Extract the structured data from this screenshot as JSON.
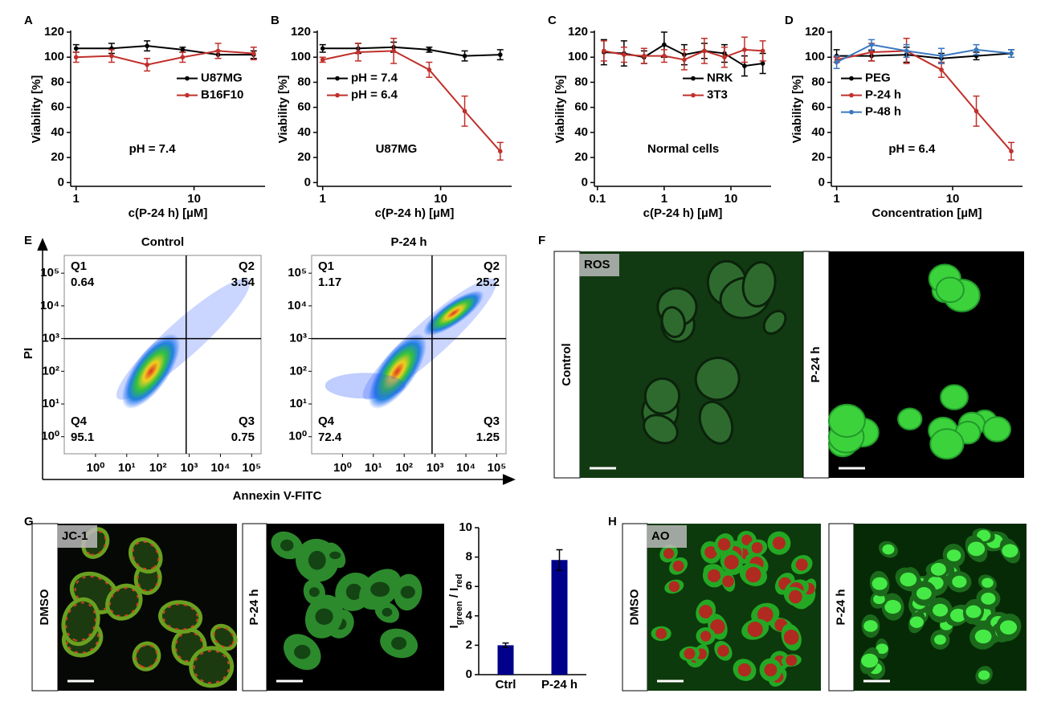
{
  "chart_data": [
    {
      "type": "line",
      "panel_label": "A",
      "xlabel": "c(P-24 h) [µM]",
      "ylabel": "Viability [%]",
      "annotation": "pH = 7.4",
      "xscale": "log",
      "xlim": [
        0.9,
        40
      ],
      "xticks": [
        1,
        10
      ],
      "ylim": [
        -3,
        120
      ],
      "yticks": [
        0,
        20,
        40,
        60,
        80,
        100,
        120
      ],
      "legend": "center right",
      "x": [
        1,
        2,
        4,
        8,
        16,
        32
      ],
      "series": [
        {
          "name": "U87MG",
          "color": "#000000",
          "values": [
            107,
            107,
            109,
            106,
            102,
            102
          ],
          "errors": [
            3,
            4,
            4,
            2,
            3,
            3
          ]
        },
        {
          "name": "B16F10",
          "color": "#c0302b",
          "values": [
            100,
            101,
            94,
            100,
            105,
            103
          ],
          "errors": [
            4,
            5,
            5,
            4,
            6,
            5
          ]
        }
      ]
    },
    {
      "type": "line",
      "panel_label": "B",
      "xlabel": "c(P-24 h) [µM]",
      "ylabel": "Viability [%]",
      "annotation": "U87MG",
      "xscale": "log",
      "xlim": [
        0.9,
        40
      ],
      "xticks": [
        1,
        10
      ],
      "ylim": [
        -3,
        120
      ],
      "yticks": [
        0,
        20,
        40,
        60,
        80,
        100,
        120
      ],
      "legend": "center left",
      "x": [
        1,
        2,
        4,
        8,
        16,
        32
      ],
      "series": [
        {
          "name": "pH = 7.4",
          "color": "#000000",
          "values": [
            107,
            107,
            108,
            106,
            101,
            102
          ],
          "errors": [
            3,
            4,
            4,
            2,
            4,
            4
          ]
        },
        {
          "name": "pH = 6.4",
          "color": "#c0302b",
          "values": [
            98,
            104,
            105,
            90,
            57,
            25
          ],
          "errors": [
            2,
            7,
            10,
            6,
            12,
            7
          ]
        }
      ]
    },
    {
      "type": "line",
      "panel_label": "C",
      "xlabel": "c(P-24 h) [µM]",
      "ylabel": "Viability [%]",
      "annotation": "Normal cells",
      "xscale": "log",
      "xlim": [
        0.09,
        40
      ],
      "xticks": [
        0.1,
        1,
        10
      ],
      "ylim": [
        -3,
        120
      ],
      "yticks": [
        0,
        20,
        40,
        60,
        80,
        100,
        120
      ],
      "legend": "center right",
      "x": [
        0.125,
        0.25,
        0.5,
        1,
        2,
        4,
        8,
        16,
        30
      ],
      "series": [
        {
          "name": "NRK",
          "color": "#000000",
          "values": [
            104,
            103,
            100,
            110,
            102,
            105,
            103,
            93,
            95
          ],
          "errors": [
            10,
            10,
            5,
            10,
            8,
            6,
            7,
            8,
            8
          ]
        },
        {
          "name": "3T3",
          "color": "#c0302b",
          "values": [
            105,
            102,
            101,
            101,
            98,
            105,
            100,
            106,
            105
          ],
          "errors": [
            8,
            6,
            6,
            5,
            8,
            10,
            8,
            10,
            8
          ]
        }
      ]
    },
    {
      "type": "line",
      "panel_label": "D",
      "xlabel": "Concentration [µM]",
      "ylabel": "Viability [%]",
      "annotation": "pH = 6.4",
      "xscale": "log",
      "xlim": [
        0.9,
        40
      ],
      "xticks": [
        1,
        10
      ],
      "ylim": [
        -3,
        120
      ],
      "yticks": [
        0,
        20,
        40,
        60,
        80,
        100,
        120
      ],
      "legend": "center left",
      "x": [
        1,
        2,
        4,
        8,
        16,
        32
      ],
      "series": [
        {
          "name": "PEG",
          "color": "#000000",
          "values": [
            101,
            101,
            102,
            99,
            101,
            103
          ],
          "errors": [
            5,
            4,
            6,
            4,
            3,
            3
          ]
        },
        {
          "name": "P-24 h",
          "color": "#c0302b",
          "values": [
            98,
            104,
            105,
            90,
            57,
            25
          ],
          "errors": [
            2,
            7,
            10,
            6,
            12,
            7
          ]
        },
        {
          "name": "P-48 h",
          "color": "#3a78c0",
          "values": [
            96,
            110,
            105,
            101,
            106,
            103
          ],
          "errors": [
            5,
            4,
            5,
            6,
            4,
            3
          ]
        }
      ]
    },
    {
      "type": "bar",
      "categories": [
        "Ctrl",
        "P-24 h"
      ],
      "values": [
        2.0,
        7.8
      ],
      "errors": [
        0.15,
        0.7
      ],
      "color": "#00008b",
      "ylabel": [
        "I",
        "green",
        " / I",
        "red"
      ],
      "ylim": [
        0,
        10
      ],
      "yticks": [
        0,
        2,
        4,
        6,
        8,
        10
      ]
    }
  ],
  "flow_cytometry": {
    "panel_label": "E",
    "xlabel": "Annexin V-FITC",
    "ylabel": "PI",
    "xscale": "log",
    "xlim": [
      0.1,
      200000
    ],
    "ylim": [
      0.3,
      350000
    ],
    "ticks": [
      {
        "value": 1,
        "label": "10⁰"
      },
      {
        "value": 10,
        "label": "10¹"
      },
      {
        "value": 100,
        "label": "10²"
      },
      {
        "value": 1000,
        "label": "10³"
      },
      {
        "value": 10000,
        "label": "10⁴"
      },
      {
        "value": 100000,
        "label": "10⁵"
      }
    ],
    "gate": {
      "x": 800,
      "y": 1000
    },
    "plots": [
      {
        "title": "Control",
        "quadrants": [
          {
            "name": "Q1",
            "value": 0.64
          },
          {
            "name": "Q2",
            "value": 3.54
          },
          {
            "name": "Q3",
            "value": 0.75
          },
          {
            "name": "Q4",
            "value": 95.1
          }
        ]
      },
      {
        "title": "P-24 h",
        "quadrants": [
          {
            "name": "Q1",
            "value": 1.17
          },
          {
            "name": "Q2",
            "value": 25.2
          },
          {
            "name": "Q3",
            "value": 1.25
          },
          {
            "name": "Q4",
            "value": 72.4
          }
        ]
      }
    ]
  },
  "microscopy": [
    {
      "panel_label": "F",
      "stain": "ROS",
      "conditions": [
        "Control",
        "P-24 h"
      ]
    },
    {
      "panel_label": "G",
      "stain": "JC-1",
      "conditions": [
        "DMSO",
        "P-24 h"
      ]
    },
    {
      "panel_label": "H",
      "stain": "AO",
      "conditions": [
        "DMSO",
        "P-24 h"
      ]
    }
  ]
}
